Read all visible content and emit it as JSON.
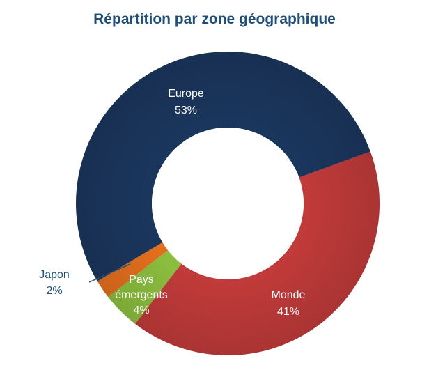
{
  "chart_data": {
    "type": "pie",
    "variant": "donut",
    "title": "Répartition par zone géographique",
    "start_angle_deg": 70,
    "direction": "clockwise",
    "slices": [
      {
        "category": "Monde",
        "value": 41,
        "label": "41%",
        "color": "#c13b3a",
        "label_color": "#ffffff"
      },
      {
        "category": "Pays émergents",
        "value": 4,
        "label": "4%",
        "color": "#8cbf3f",
        "label_color": "#ffffff"
      },
      {
        "category": "Japon",
        "value": 2,
        "label": "2%",
        "color": "#e5701e",
        "label_color": "#1f4e79"
      },
      {
        "category": "Europe",
        "value": 53,
        "label": "53%",
        "color": "#1b365d",
        "label_color": "#ffffff"
      }
    ]
  }
}
